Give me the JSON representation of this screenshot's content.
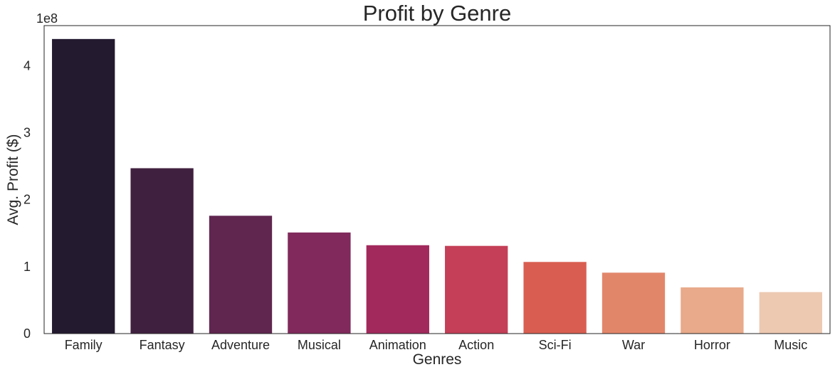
{
  "chart_data": {
    "type": "bar",
    "title": "Profit by Genre",
    "xlabel": "Genres",
    "ylabel": "Avg. Profit ($)",
    "y_offset_label": "1e8",
    "y_scale": 100000000,
    "ylim": [
      0,
      4.6
    ],
    "yticks": [
      0,
      1,
      2,
      3,
      4
    ],
    "ytick_labels": [
      "0",
      "1",
      "2",
      "3",
      "4"
    ],
    "grid": false,
    "categories": [
      "Family",
      "Fantasy",
      "Adventure",
      "Musical",
      "Animation",
      "Action",
      "Sci-Fi",
      "War",
      "Horror",
      "Music"
    ],
    "values": [
      4.4,
      2.47,
      1.76,
      1.51,
      1.32,
      1.31,
      1.07,
      0.91,
      0.69,
      0.62
    ],
    "colors": [
      "#231a30",
      "#40203f",
      "#602650",
      "#81295c",
      "#a2295c",
      "#c43f57",
      "#d95e51",
      "#e2866a",
      "#e8aa8a",
      "#edc9b2"
    ]
  }
}
